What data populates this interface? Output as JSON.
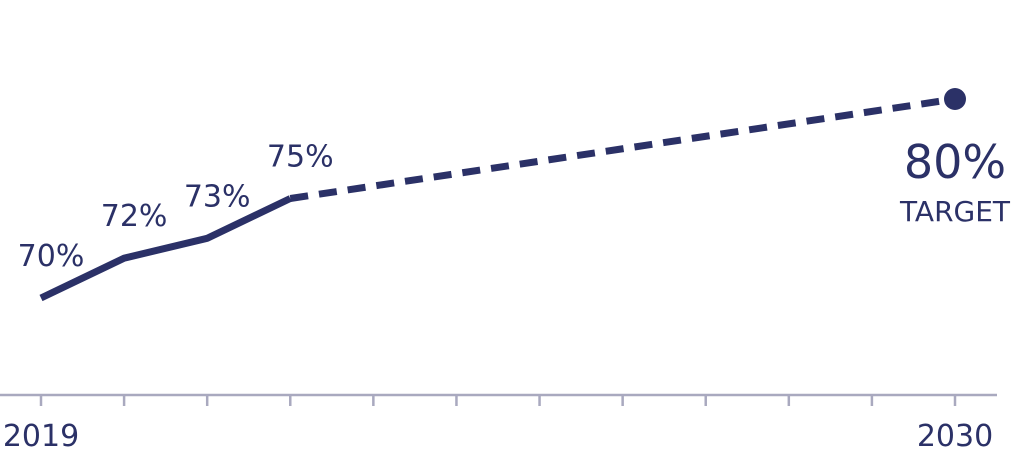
{
  "chart_data": {
    "type": "line",
    "x_range": [
      2019,
      2030
    ],
    "series": [
      {
        "style": "solid",
        "x": [
          2019,
          2020,
          2021,
          2022
        ],
        "values": [
          70,
          72,
          73,
          75
        ],
        "labels": [
          "70%",
          "72%",
          "73%",
          "75%"
        ]
      },
      {
        "style": "dashed",
        "x": [
          2022,
          2030
        ],
        "values": [
          75,
          80
        ]
      }
    ],
    "target": {
      "x": 2030,
      "value": 80,
      "value_label": "80%",
      "caption": "TARGET"
    },
    "x_tick_labels": [
      {
        "x": 2019,
        "label": "2019"
      },
      {
        "x": 2030,
        "label": "2030"
      }
    ],
    "x_ticks": [
      2019,
      2020,
      2021,
      2022,
      2023,
      2024,
      2025,
      2026,
      2027,
      2028,
      2029,
      2030
    ],
    "grid": false,
    "colors": {
      "line": "#2b3167",
      "axis": "#a9a9bf",
      "text": "#2b3167"
    }
  }
}
